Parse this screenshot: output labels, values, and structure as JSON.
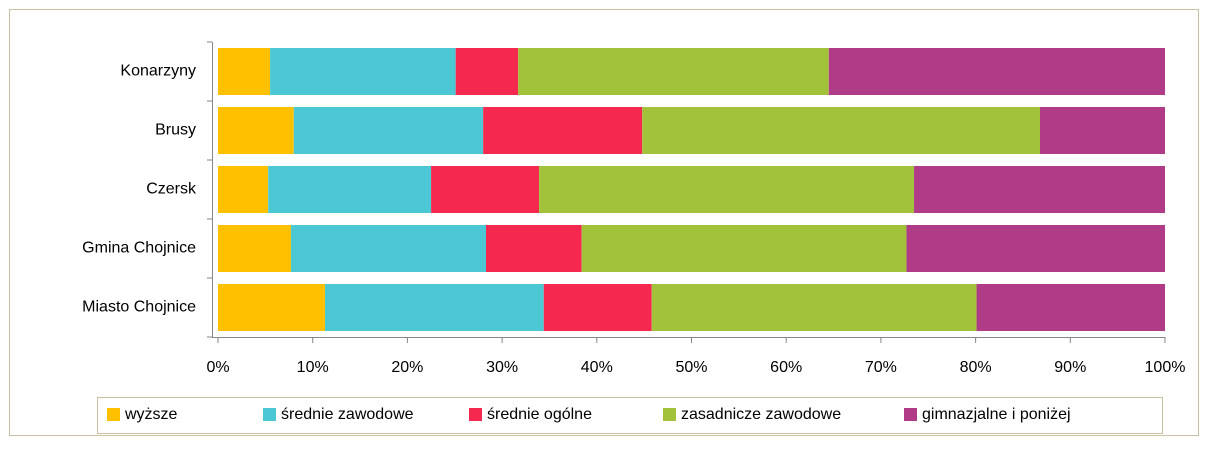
{
  "chart_data": {
    "type": "stacked-bar-horizontal",
    "categories": [
      "Konarzyny",
      "Brusy",
      "Czersk",
      "Gmina Chojnice",
      "Miasto Chojnice"
    ],
    "series": [
      {
        "name": "wyższe",
        "color": "#ffc000",
        "values": [
          5.5,
          8.0,
          5.3,
          7.7,
          11.3
        ]
      },
      {
        "name": "średnie zawodowe",
        "color": "#4bc8d4",
        "values": [
          19.6,
          20.0,
          17.2,
          20.6,
          23.1
        ]
      },
      {
        "name": "średnie ogólne",
        "color": "#f5294f",
        "values": [
          6.6,
          16.8,
          11.4,
          10.1,
          11.4
        ]
      },
      {
        "name": "zasadnicze zawodowe",
        "color": "#a2c23c",
        "values": [
          32.8,
          42.0,
          39.6,
          34.3,
          34.3
        ]
      },
      {
        "name": "gimnazjalne i poniżej",
        "color": "#b03c88",
        "values": [
          35.5,
          13.2,
          26.5,
          27.3,
          19.9
        ]
      }
    ],
    "xlim": [
      0,
      100
    ],
    "xticks": [
      {
        "value": 0,
        "label": "0%"
      },
      {
        "value": 10,
        "label": "10%"
      },
      {
        "value": 20,
        "label": "20%"
      },
      {
        "value": 30,
        "label": "30%"
      },
      {
        "value": 40,
        "label": "40%"
      },
      {
        "value": 50,
        "label": "50%"
      },
      {
        "value": 60,
        "label": "60%"
      },
      {
        "value": 70,
        "label": "70%"
      },
      {
        "value": 80,
        "label": "80%"
      },
      {
        "value": 90,
        "label": "90%"
      },
      {
        "value": 100,
        "label": "100%"
      }
    ],
    "legend": "bottom"
  }
}
